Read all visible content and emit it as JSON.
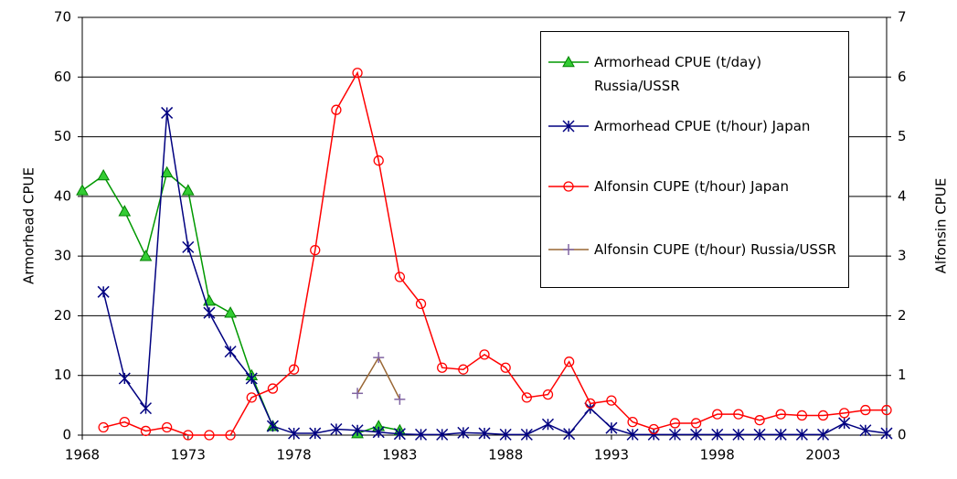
{
  "chart_data": {
    "type": "line",
    "y_label": "Armorhead CPUE",
    "y2_label": "Alfonsin CPUE",
    "x": [
      1968,
      1969,
      1970,
      1971,
      1972,
      1973,
      1974,
      1975,
      1976,
      1977,
      1978,
      1979,
      1980,
      1981,
      1982,
      1983,
      1984,
      1985,
      1986,
      1987,
      1988,
      1989,
      1990,
      1991,
      1992,
      1993,
      1994,
      1995,
      1996,
      1997,
      1998,
      1999,
      2000,
      2001,
      2002,
      2003,
      2004,
      2005,
      2006
    ],
    "xlim": [
      1968,
      2006
    ],
    "xticks": [
      1968,
      1973,
      1978,
      1983,
      1988,
      1993,
      1998,
      2003
    ],
    "ylim": [
      0,
      70
    ],
    "yticks": [
      0,
      10,
      20,
      30,
      40,
      50,
      60,
      70
    ],
    "y2lim": [
      0,
      7
    ],
    "y2ticks": [
      0,
      1,
      2,
      3,
      4,
      5,
      6,
      7
    ],
    "grid": true,
    "legend_position": "upper right",
    "series": [
      {
        "name": "Armorhead CPUE (t/day) Russia/USSR",
        "color": "#009900",
        "marker": "triangle",
        "marker_color": "#33cc33",
        "values": [
          41,
          43.5,
          37.5,
          30,
          44,
          41,
          22.5,
          20.5,
          10,
          1.5,
          null,
          null,
          null,
          0.3,
          1.5,
          0.8,
          null,
          null,
          null,
          null,
          null,
          null,
          null,
          null,
          null,
          null,
          null,
          null,
          null,
          null,
          null,
          null,
          null,
          null,
          null,
          null,
          null,
          null,
          null
        ]
      },
      {
        "name": "Armorhead CPUE (t/hour) Japan",
        "color": "#000080",
        "marker": "asterisk",
        "marker_color": "#000080",
        "values": [
          null,
          24,
          9.5,
          4.5,
          54,
          31.5,
          20.5,
          14,
          9.5,
          1.5,
          0.3,
          0.3,
          1.0,
          0.8,
          0.5,
          0.2,
          0.1,
          0.1,
          0.4,
          0.3,
          0.1,
          0.1,
          1.8,
          0.2,
          4.5,
          1.2,
          0.1,
          0.1,
          0.1,
          0.1,
          0.1,
          0.1,
          0.1,
          0.1,
          0.1,
          0.1,
          2.0,
          0.8,
          0.3
        ]
      },
      {
        "name": "Alfonsin CUPE (t/hour) Japan",
        "color": "#ff0000",
        "marker": "circle",
        "marker_color": "#ff0000",
        "axis": "y2",
        "values": [
          null,
          0.13,
          0.22,
          0.07,
          0.13,
          0,
          0,
          0,
          0.63,
          0.78,
          1.1,
          3.1,
          5.45,
          6.07,
          4.6,
          2.65,
          2.2,
          1.13,
          1.1,
          1.35,
          1.13,
          0.63,
          0.68,
          1.23,
          0.53,
          0.58,
          0.22,
          0.1,
          0.2,
          0.2,
          0.35,
          0.35,
          0.25,
          0.35,
          0.33,
          0.33,
          0.37,
          0.42,
          0.42
        ]
      },
      {
        "name": "Alfonsin CUPE (t/hour) Russia/USSR",
        "color": "#996633",
        "marker": "plus",
        "marker_color": "#8064a2",
        "axis": "y2",
        "values": [
          null,
          null,
          null,
          null,
          null,
          null,
          null,
          null,
          null,
          null,
          null,
          null,
          null,
          0.7,
          1.3,
          0.6,
          null,
          null,
          null,
          null,
          null,
          null,
          null,
          null,
          null,
          null,
          null,
          null,
          null,
          null,
          null,
          null,
          null,
          null,
          null,
          null,
          null,
          null,
          null
        ]
      }
    ]
  }
}
